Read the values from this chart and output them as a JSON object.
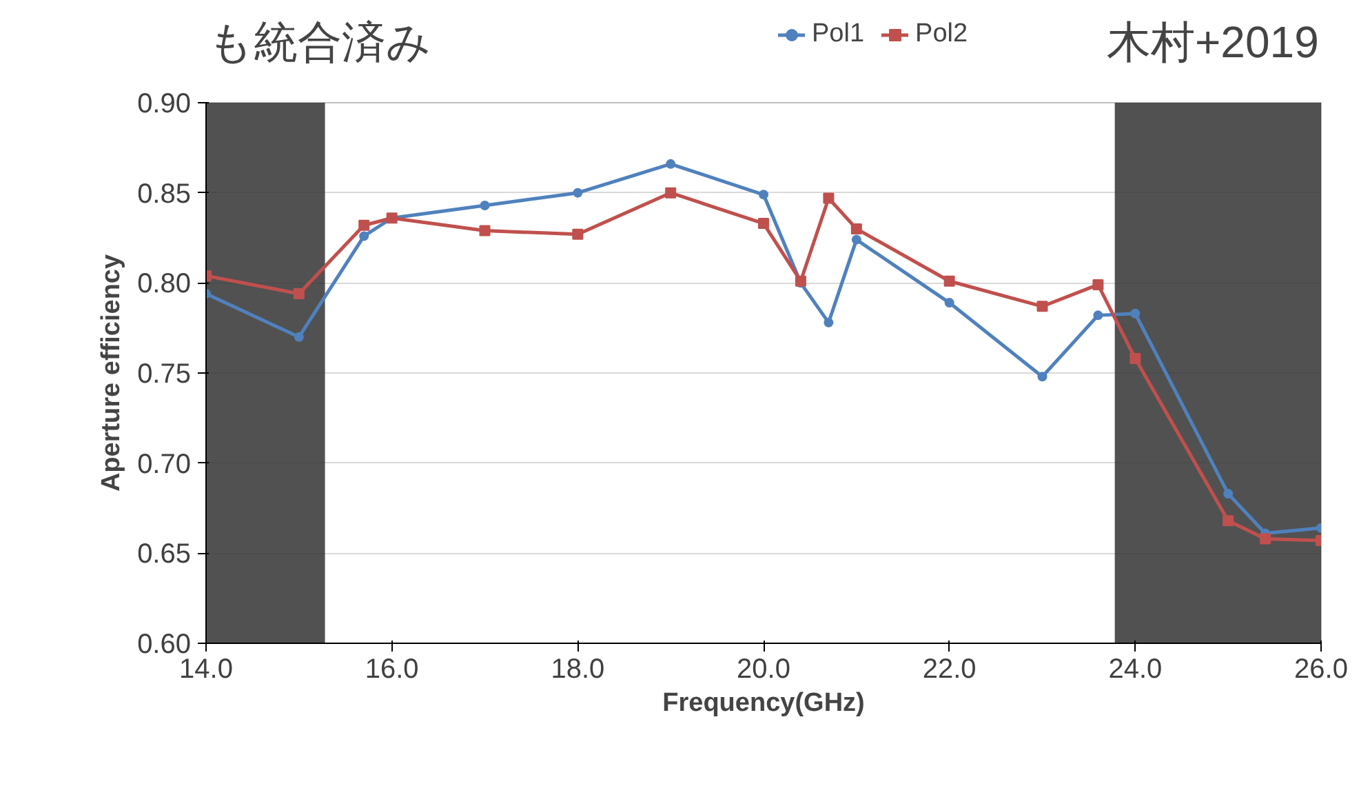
{
  "chart_data": {
    "type": "line",
    "xlabel": "Frequency(GHz)",
    "ylabel": "Aperture efficiency",
    "annotations": [
      "も統合済み",
      "木村+2019"
    ],
    "xlim": [
      14,
      26
    ],
    "xticks": [
      {
        "value": 14,
        "label": "14.0"
      },
      {
        "value": 16,
        "label": "16.0"
      },
      {
        "value": 18,
        "label": "18.0"
      },
      {
        "value": 20,
        "label": "20.0"
      },
      {
        "value": 22,
        "label": "22.0"
      },
      {
        "value": 24,
        "label": "24.0"
      },
      {
        "value": 26,
        "label": "26.0"
      }
    ],
    "ylim": [
      0.6,
      0.9
    ],
    "yticks": [
      {
        "value": 0.6,
        "label": "0.60"
      },
      {
        "value": 0.65,
        "label": "0.65"
      },
      {
        "value": 0.7,
        "label": "0.70"
      },
      {
        "value": 0.75,
        "label": "0.75"
      },
      {
        "value": 0.8,
        "label": "0.80"
      },
      {
        "value": 0.85,
        "label": "0.85"
      },
      {
        "value": 0.9,
        "label": "0.90"
      }
    ],
    "grid": "y",
    "legend": "top",
    "series": [
      {
        "name": "Pol1",
        "color": "#4f81bd",
        "marker": "circle",
        "x": [
          14,
          15,
          15.7,
          16,
          17,
          18,
          19,
          20,
          20.4,
          20.7,
          21,
          22,
          23,
          23.6,
          24,
          25,
          25.4,
          26
        ],
        "values": [
          0.794,
          0.77,
          0.826,
          0.836,
          0.843,
          0.85,
          0.866,
          0.849,
          0.8,
          0.778,
          0.824,
          0.789,
          0.748,
          0.782,
          0.783,
          0.683,
          0.661,
          0.664
        ]
      },
      {
        "name": "Pol2",
        "color": "#c0504d",
        "marker": "square",
        "x": [
          14,
          15,
          15.7,
          16,
          17,
          18,
          19,
          20,
          20.4,
          20.7,
          21,
          22,
          23,
          23.6,
          24,
          25,
          25.4,
          26
        ],
        "values": [
          0.804,
          0.794,
          0.832,
          0.836,
          0.829,
          0.827,
          0.85,
          0.833,
          0.801,
          0.847,
          0.83,
          0.801,
          0.787,
          0.799,
          0.758,
          0.668,
          0.658,
          0.657
        ]
      }
    ],
    "bands": [
      {
        "axis": "x",
        "from": 14,
        "to": 15.28,
        "color": "#333333"
      },
      {
        "axis": "x",
        "from": 23.78,
        "to": 26,
        "color": "#333333"
      }
    ]
  }
}
